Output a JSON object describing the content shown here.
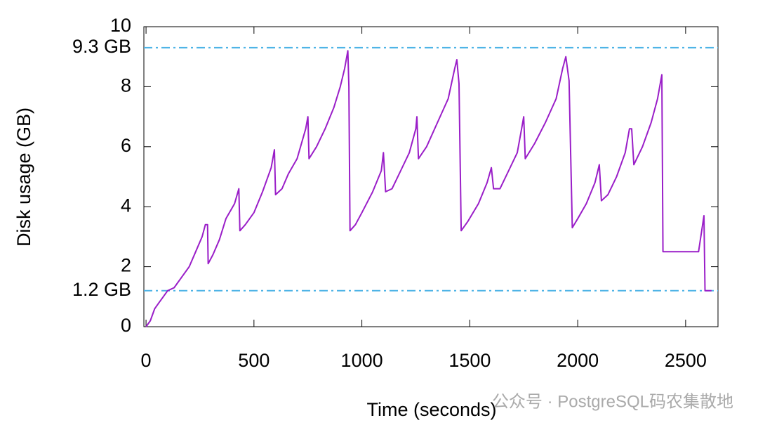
{
  "chart_data": {
    "type": "line",
    "x_label": "Time (seconds)",
    "y_label": "Disk usage (GB)",
    "watermark": "公众号 · PostgreSQL码农集散地",
    "xlim": [
      -10,
      2650
    ],
    "ylim": [
      0,
      10
    ],
    "xticks": [
      0,
      500,
      1000,
      1500,
      2000,
      2500
    ],
    "yticks": [
      0,
      {
        "value": 1.2,
        "label": "1.2 GB"
      },
      2,
      4,
      6,
      8,
      {
        "value": 9.3,
        "label": "9.3 GB"
      },
      10
    ],
    "reference_color": "#4db3e6",
    "reference_style": "dash-dot",
    "series": [
      {
        "color": "#9a1ec8",
        "x": [
          0,
          20,
          40,
          60,
          80,
          100,
          130,
          160,
          200,
          230,
          260,
          275,
          285,
          288,
          310,
          340,
          370,
          410,
          430,
          435,
          460,
          500,
          540,
          580,
          595,
          600,
          630,
          660,
          700,
          740,
          750,
          755,
          790,
          830,
          870,
          900,
          920,
          935,
          940,
          945,
          970,
          1000,
          1050,
          1090,
          1100,
          1110,
          1140,
          1180,
          1220,
          1250,
          1255,
          1262,
          1300,
          1350,
          1400,
          1430,
          1440,
          1450,
          1460,
          1490,
          1540,
          1580,
          1600,
          1610,
          1640,
          1680,
          1720,
          1740,
          1750,
          1757,
          1800,
          1850,
          1900,
          1930,
          1945,
          1960,
          1975,
          2000,
          2040,
          2080,
          2100,
          2110,
          2140,
          2180,
          2220,
          2240,
          2250,
          2260,
          2300,
          2340,
          2370,
          2390,
          2395,
          2500,
          2560,
          2585,
          2590,
          2620
        ],
        "values": [
          0,
          0.2,
          0.6,
          0.8,
          1.0,
          1.2,
          1.3,
          1.6,
          2.0,
          2.5,
          3.0,
          3.4,
          3.4,
          2.1,
          2.4,
          2.9,
          3.6,
          4.1,
          4.6,
          3.2,
          3.4,
          3.8,
          4.5,
          5.3,
          5.9,
          4.4,
          4.6,
          5.1,
          5.6,
          6.6,
          7.0,
          5.6,
          6.0,
          6.6,
          7.3,
          8.0,
          8.6,
          9.2,
          8.0,
          3.2,
          3.4,
          3.8,
          4.5,
          5.2,
          5.8,
          4.5,
          4.6,
          5.2,
          5.8,
          6.6,
          7.0,
          5.6,
          6.0,
          6.8,
          7.6,
          8.6,
          8.9,
          8.1,
          3.2,
          3.5,
          4.1,
          4.8,
          5.3,
          4.6,
          4.6,
          5.2,
          5.8,
          6.6,
          7.0,
          5.6,
          6.1,
          6.8,
          7.6,
          8.6,
          9.0,
          8.2,
          3.3,
          3.6,
          4.1,
          4.8,
          5.4,
          4.2,
          4.4,
          5.0,
          5.8,
          6.6,
          6.6,
          5.4,
          6.0,
          6.8,
          7.6,
          8.4,
          2.5,
          2.5,
          2.5,
          3.7,
          1.2,
          1.2
        ]
      }
    ]
  }
}
